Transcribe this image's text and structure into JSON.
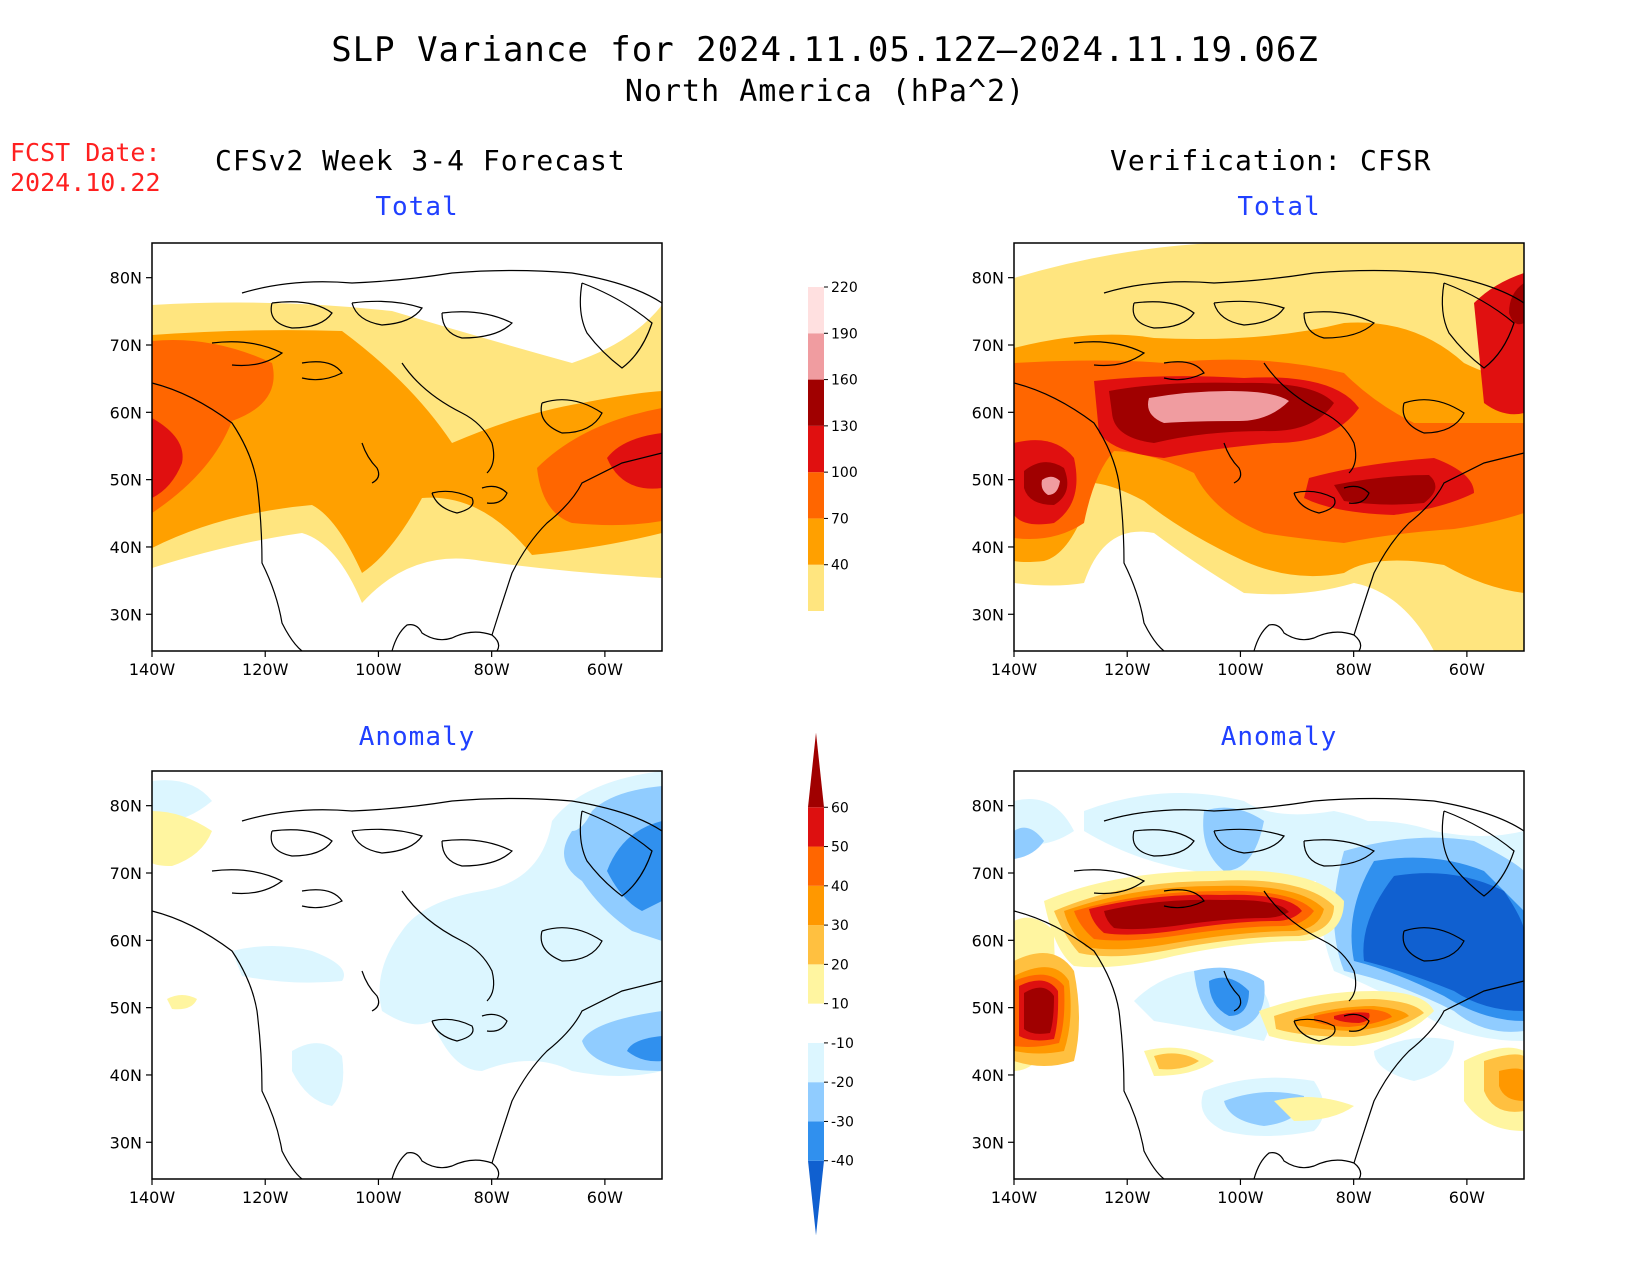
{
  "title": "SLP Variance for 2024.11.05.12Z—2024.11.19.06Z",
  "subtitle": "North America (hPa^2)",
  "fcst_label": "FCST Date:",
  "fcst_date": "2024.10.22",
  "left_header": "CFSv2 Week 3-4 Forecast",
  "right_header": "Verification: CFSR",
  "panel_titles": [
    "Total",
    "Total",
    "Anomaly",
    "Anomaly"
  ],
  "lat_labels": [
    "80N",
    "70N",
    "60N",
    "50N",
    "40N",
    "30N"
  ],
  "lon_labels": [
    "140W",
    "120W",
    "100W",
    "80W",
    "60W"
  ],
  "colors": {
    "title_blue": "#2040ff",
    "fcst_red": "#ff2020"
  },
  "total_colorbar": {
    "labels": [
      "40",
      "70",
      "100",
      "130",
      "160",
      "190",
      "220"
    ],
    "colors": [
      "#ffe57f",
      "#ffa000",
      "#ff6600",
      "#e01010",
      "#a00000",
      "#f09ca0",
      "#ffe0e0"
    ]
  },
  "anomaly_colorbar": {
    "labels": [
      "-40",
      "-30",
      "-20",
      "-10",
      "10",
      "20",
      "30",
      "40",
      "50",
      "60"
    ],
    "colors": [
      "#1060d0",
      "#3090ee",
      "#90ccff",
      "#dcf6ff",
      "#ffffff",
      "#fff5a0",
      "#ffc040",
      "#ff9800",
      "#ff6600",
      "#dd1010",
      "#a00000"
    ]
  }
}
